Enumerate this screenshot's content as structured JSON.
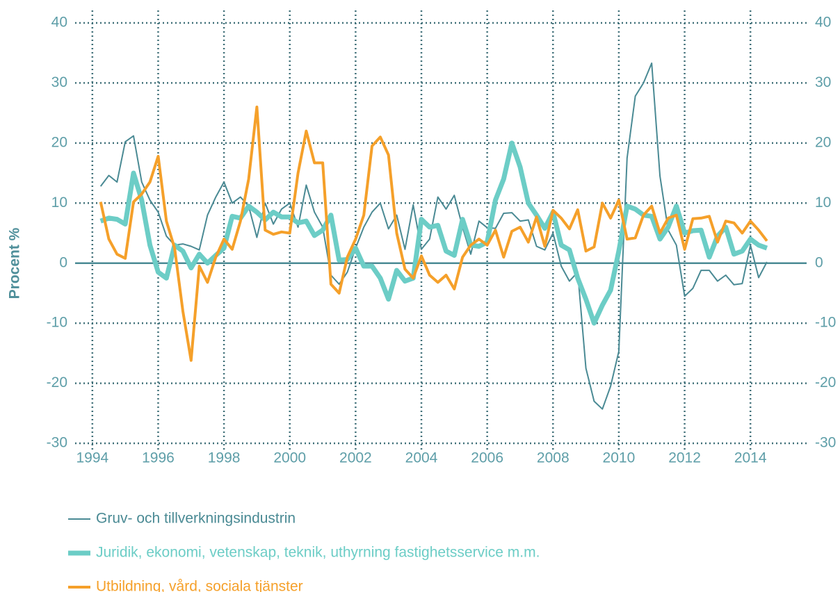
{
  "chart_data": {
    "type": "line",
    "y_label": "Procent %",
    "x": [
      1994.25,
      1994.5,
      1994.75,
      1995,
      1995.25,
      1995.5,
      1995.75,
      1996,
      1996.25,
      1996.5,
      1996.75,
      1997,
      1997.25,
      1997.5,
      1997.75,
      1998,
      1998.25,
      1998.5,
      1998.75,
      1999,
      1999.25,
      1999.5,
      1999.75,
      2000,
      2000.25,
      2000.5,
      2000.75,
      2001,
      2001.25,
      2001.5,
      2001.75,
      2002,
      2002.25,
      2002.5,
      2002.75,
      2003,
      2003.25,
      2003.5,
      2003.75,
      2004,
      2004.25,
      2004.5,
      2004.75,
      2005,
      2005.25,
      2005.5,
      2005.75,
      2006,
      2006.25,
      2006.5,
      2006.75,
      2007,
      2007.25,
      2007.5,
      2007.75,
      2008,
      2008.25,
      2008.5,
      2008.75,
      2009,
      2009.25,
      2009.5,
      2009.75,
      2010,
      2010.25,
      2010.5,
      2010.75,
      2011,
      2011.25,
      2011.5,
      2011.75,
      2012,
      2012.25,
      2012.5,
      2012.75,
      2013,
      2013.25,
      2013.5,
      2013.75,
      2014,
      2014.25,
      2014.5
    ],
    "series": [
      {
        "name": "Gruv- och tillverkningsindustrin",
        "color": "#4a8a94",
        "width": 2,
        "values": [
          12.8,
          14.6,
          13.5,
          20.2,
          21.2,
          13.5,
          10.5,
          8.5,
          4.5,
          3.0,
          3.2,
          2.8,
          2.2,
          8,
          11,
          13.5,
          10,
          11,
          9.5,
          4.3,
          10,
          6.5,
          9,
          10,
          6,
          13,
          8.5,
          6,
          -2,
          -3.5,
          -1.5,
          2.5,
          6,
          8.5,
          10,
          5.7,
          8,
          2.3,
          9.7,
          2.3,
          4,
          11,
          9,
          11.3,
          6,
          1.5,
          7,
          5.9,
          5.8,
          8.3,
          8.4,
          7,
          7.2,
          2.8,
          2.2,
          5,
          -0.5,
          -3,
          -1.5,
          -17.5,
          -23,
          -24.3,
          -20.5,
          -14.7,
          17.5,
          27.8,
          30,
          33.3,
          14.5,
          5.5,
          3,
          -5.5,
          -4.2,
          -1.2,
          -1.2,
          -3,
          -2,
          -3.6,
          -3.4,
          3,
          -2.4,
          0.2
        ]
      },
      {
        "name": "Juridik, ekonomi, vetenskap, teknik, uthyrning fastighetsservice m.m.",
        "color": "#6ccdc6",
        "width": 7,
        "values": [
          7,
          7.5,
          7.3,
          6.5,
          15,
          10.5,
          3,
          -1.5,
          -2.5,
          3,
          2,
          -0.8,
          1.5,
          0,
          1.3,
          2.5,
          7.8,
          7.5,
          9.5,
          8.5,
          7.2,
          8.5,
          7.7,
          7.7,
          6.7,
          7,
          4.6,
          5.5,
          8,
          0.5,
          0.6,
          2.5,
          -0.5,
          -0.5,
          -2.5,
          -6,
          -1.2,
          -3,
          -2.5,
          7.3,
          6,
          6.3,
          2,
          1.3,
          7.3,
          3,
          2.8,
          3.5,
          10.5,
          14,
          20,
          16,
          10,
          8,
          5.8,
          8.5,
          3,
          2.2,
          -2.5,
          -6,
          -10,
          -7,
          -4.5,
          2,
          9.5,
          9,
          8,
          7.8,
          4,
          6,
          9.5,
          5,
          5.4,
          5.5,
          1,
          4.5,
          6,
          1.5,
          2,
          4,
          3,
          2.5
        ]
      },
      {
        "name": "Utbildning, vård, sociala tjänster",
        "color": "#f5a02a",
        "width": 4,
        "values": [
          10.2,
          4,
          1.5,
          0.8,
          10.2,
          11.5,
          13.5,
          17.8,
          7,
          2.5,
          -8,
          -16.2,
          -0.5,
          -3.2,
          1,
          4,
          2.3,
          7,
          14,
          26,
          5.5,
          4.8,
          5.2,
          5,
          15,
          22,
          16.7,
          16.7,
          -3.5,
          -5,
          1,
          4,
          8,
          19.5,
          21,
          18,
          5,
          -1,
          -2.5,
          1.2,
          -2,
          -3.2,
          -2,
          -4.3,
          1,
          3,
          4,
          3,
          5.5,
          1,
          5.3,
          6,
          3.5,
          7.7,
          2.8,
          8.8,
          7.5,
          5.7,
          8.9,
          2,
          2.7,
          10,
          7.5,
          10.5,
          4,
          4.2,
          8,
          9.5,
          5,
          7.5,
          8,
          2.3,
          7.4,
          7.5,
          7.8,
          3.5,
          7,
          6.7,
          5,
          7,
          5.5,
          3.7
        ]
      }
    ],
    "xlim": [
      1993.75,
      2015.75
    ],
    "xticks": [
      1994,
      1996,
      1998,
      2000,
      2002,
      2004,
      2006,
      2008,
      2010,
      2012,
      2014
    ],
    "ylim": [
      -30,
      40
    ],
    "yticks": [
      -30,
      -20,
      -10,
      0,
      10,
      20,
      30,
      40
    ],
    "grid": true
  }
}
